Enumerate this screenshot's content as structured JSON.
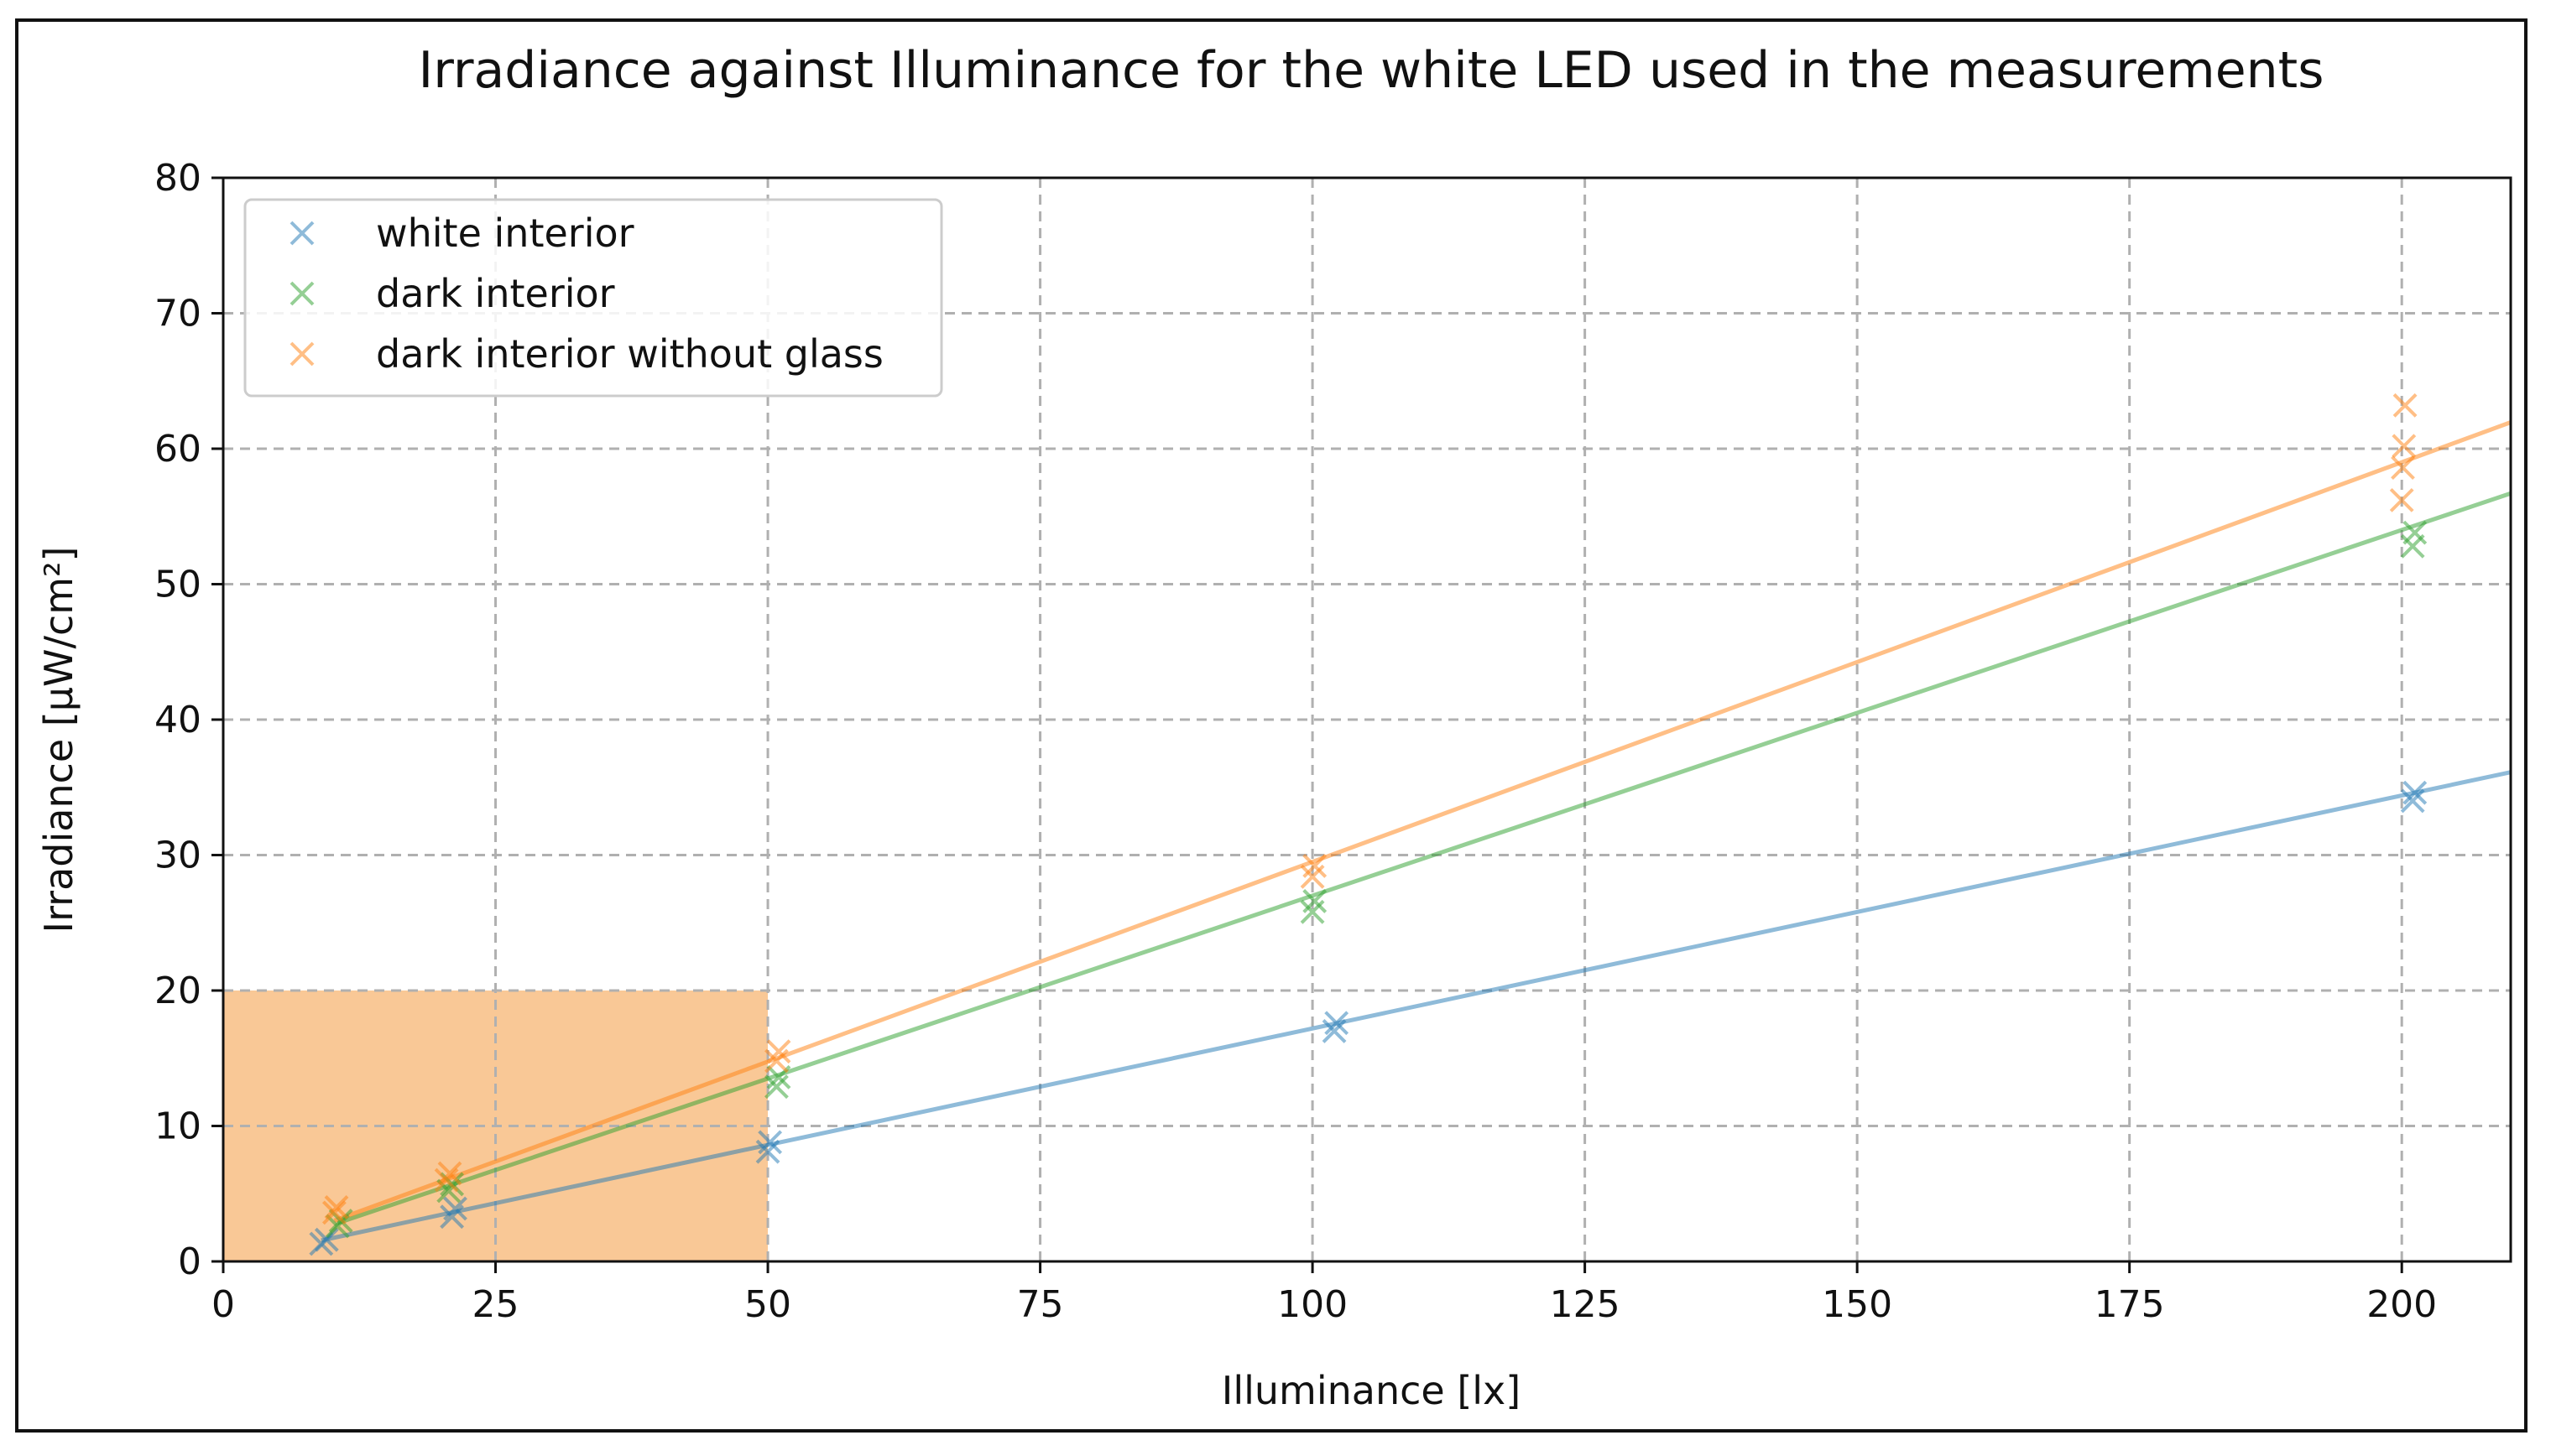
{
  "chart_data": {
    "type": "scatter",
    "title": "Irradiance against Illuminance for the white LED used in the measurements",
    "xlabel": "Illuminance [lx]",
    "ylabel": "Irradiance [μW/cm²]",
    "xlim": [
      0,
      210
    ],
    "ylim": [
      0,
      80
    ],
    "xticks": [
      0,
      25,
      50,
      75,
      100,
      125,
      150,
      175,
      200
    ],
    "yticks": [
      0,
      10,
      20,
      30,
      40,
      50,
      60,
      70,
      80
    ],
    "grid": true,
    "legend_position": "top-left",
    "highlight_region": {
      "x": [
        0,
        50
      ],
      "y": [
        0,
        20
      ],
      "color": "#f9c896"
    },
    "series": [
      {
        "name": "white interior",
        "color": "#1f77b4",
        "points": [
          [
            9,
            1.3
          ],
          [
            9.5,
            1.6
          ],
          [
            21,
            3.3
          ],
          [
            21.3,
            3.9
          ],
          [
            50,
            8.1
          ],
          [
            50.2,
            8.8
          ],
          [
            102,
            17.0
          ],
          [
            102.2,
            17.6
          ],
          [
            201,
            34.0
          ],
          [
            201.2,
            34.6
          ]
        ],
        "fit": {
          "slope": 0.172,
          "intercept": 0
        }
      },
      {
        "name": "dark interior",
        "color": "#2ca02c",
        "points": [
          [
            10.5,
            2.6
          ],
          [
            10.8,
            3.0
          ],
          [
            20.7,
            5.2
          ],
          [
            21,
            5.7
          ],
          [
            50.8,
            12.9
          ],
          [
            51,
            13.6
          ],
          [
            100,
            25.8
          ],
          [
            100.2,
            26.6
          ],
          [
            201,
            52.8
          ],
          [
            201.2,
            53.8
          ]
        ],
        "fit": {
          "slope": 0.27,
          "intercept": 0
        }
      },
      {
        "name": "dark interior without glass",
        "color": "#ff7f0e",
        "points": [
          [
            10.2,
            3.6
          ],
          [
            10.4,
            4.0
          ],
          [
            20.5,
            6.0
          ],
          [
            20.8,
            6.5
          ],
          [
            50.8,
            14.8
          ],
          [
            51,
            15.5
          ],
          [
            100,
            28.4
          ],
          [
            100.2,
            29.2
          ],
          [
            200,
            56.2
          ],
          [
            200.1,
            58.6
          ],
          [
            200.2,
            60.2
          ],
          [
            200.3,
            63.2
          ]
        ],
        "fit": {
          "slope": 0.295,
          "intercept": 0
        }
      }
    ]
  }
}
